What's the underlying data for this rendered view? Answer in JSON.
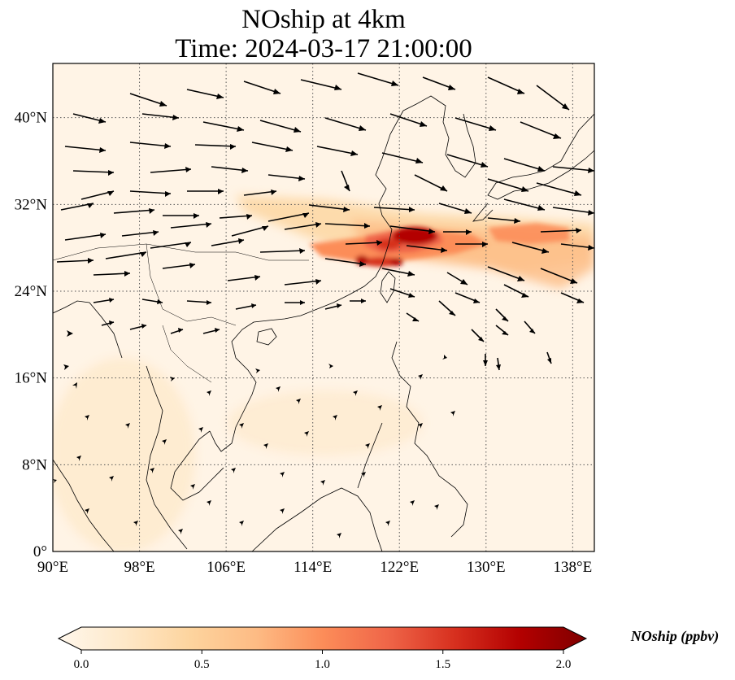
{
  "title": {
    "line1": "NOship at 4km",
    "line2": "Time: 2024-03-17 21:00:00"
  },
  "map": {
    "projection": "PlateCarree",
    "lon_range": [
      90,
      140
    ],
    "lat_range": [
      0,
      45
    ],
    "gridlines": true,
    "x_ticks": [
      {
        "value": 90,
        "label": "90°E"
      },
      {
        "value": 98,
        "label": "98°E"
      },
      {
        "value": 106,
        "label": "106°E"
      },
      {
        "value": 114,
        "label": "114°E"
      },
      {
        "value": 122,
        "label": "122°E"
      },
      {
        "value": 130,
        "label": "130°E"
      },
      {
        "value": 138,
        "label": "138°E"
      }
    ],
    "y_ticks": [
      {
        "value": 0,
        "label": "0°"
      },
      {
        "value": 8,
        "label": "8°N"
      },
      {
        "value": 16,
        "label": "16°N"
      },
      {
        "value": 24,
        "label": "24°N"
      },
      {
        "value": 32,
        "label": "32°N"
      },
      {
        "value": 40,
        "label": "40°N"
      }
    ],
    "field": "NOship",
    "high_concentration_region": "East China Sea near Zhejiang and Taiwan Strait",
    "wind_vectors": "westerly winds north of 24°N, weak northeasterly flow to the south"
  },
  "colorbar": {
    "label": "NOship (ppbv)",
    "ticks": [
      "0.0",
      "0.5",
      "1.0",
      "1.5",
      "2.0"
    ],
    "min": 0.0,
    "max": 2.0,
    "colormap": "OrRd",
    "colors": [
      "#fff7ec",
      "#fee8c8",
      "#fdd49e",
      "#fdbb84",
      "#fc8d59",
      "#ef6548",
      "#d7301f",
      "#b30000",
      "#7f0000"
    ],
    "extend": "both"
  }
}
